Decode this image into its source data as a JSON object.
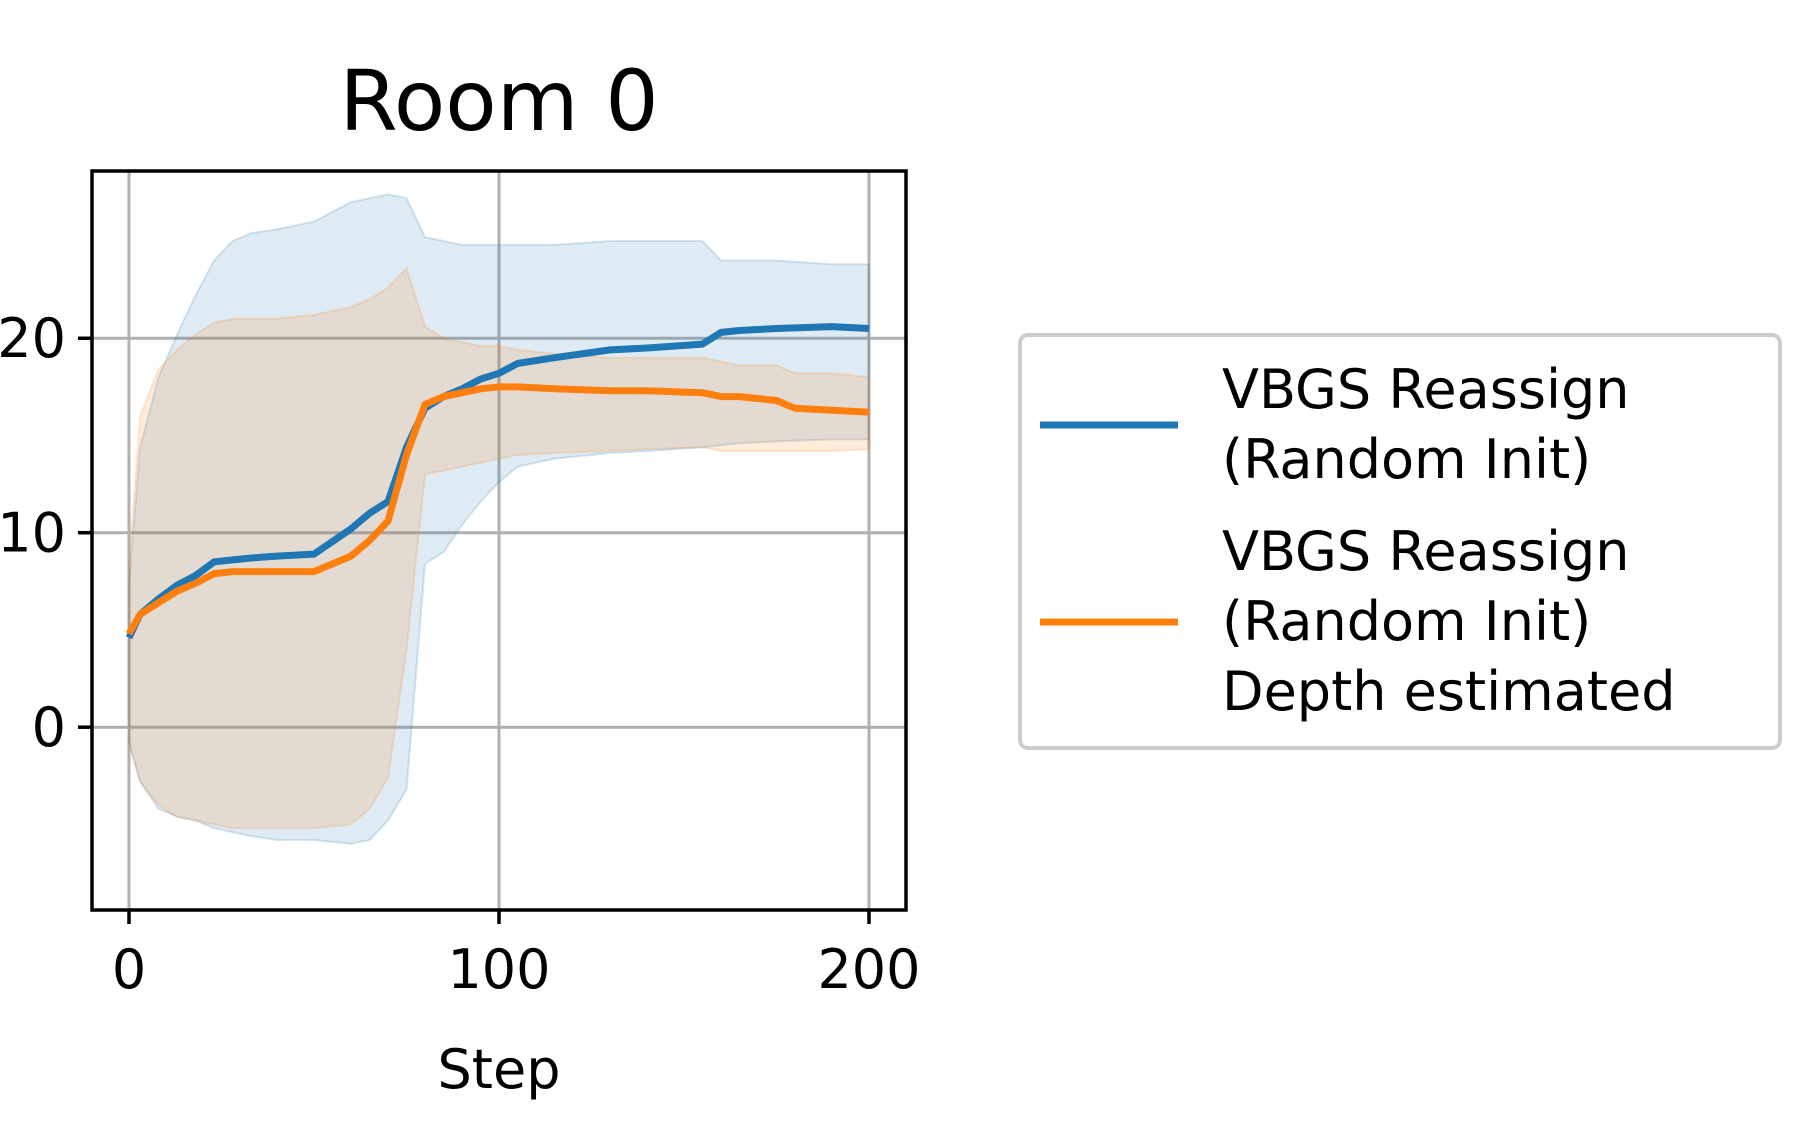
{
  "chart_data": {
    "type": "line",
    "title": "Room 0",
    "xlabel": "Step",
    "ylabel": "",
    "xlim": [
      -10,
      210
    ],
    "ylim": [
      -47,
      143
    ],
    "xticks": [
      0,
      100,
      200
    ],
    "xtick_labels": [
      "0",
      "100",
      "200"
    ],
    "yticks": [
      0,
      50,
      100
    ],
    "ytick_labels": [
      "0",
      "10",
      "20"
    ],
    "grid": true,
    "legend_position": "right, outside plot",
    "series": [
      {
        "name": "VBGS Reassign\n(Random Init)",
        "color": "#1f77b4",
        "x": [
          0,
          3,
          8,
          13,
          18,
          23,
          28,
          33,
          40,
          50,
          60,
          65,
          70,
          75,
          80,
          85,
          90,
          95,
          100,
          105,
          115,
          130,
          140,
          155,
          160,
          165,
          175,
          190,
          200
        ],
        "y": [
          23,
          29,
          33,
          36.5,
          39,
          42.5,
          43,
          43.5,
          44,
          44.5,
          51,
          55,
          58,
          72,
          82,
          85,
          87,
          89.5,
          91,
          93.5,
          95,
          97,
          97.5,
          98.5,
          101.5,
          102,
          102.5,
          103,
          102.5
        ],
        "lower": [
          -4,
          -14,
          -21,
          -23,
          -24,
          -26,
          -27,
          -28,
          -29,
          -29,
          -30,
          -29,
          -24,
          -16,
          42,
          45,
          52,
          58,
          63,
          67,
          69,
          70.5,
          71,
          72,
          72.5,
          73,
          73.5,
          74,
          74
        ],
        "upper": [
          37,
          72,
          90,
          101,
          111,
          120,
          125,
          127,
          128,
          130,
          135,
          136,
          137,
          136,
          126,
          125,
          124,
          124,
          124,
          124,
          124,
          125,
          125,
          125,
          120,
          120,
          120,
          119,
          119
        ]
      },
      {
        "name": "VBGS Reassign\n(Random Init)\nDepth estimated",
        "color": "#ff7f0e",
        "x": [
          0,
          3,
          8,
          13,
          18,
          23,
          28,
          33,
          40,
          50,
          60,
          65,
          70,
          75,
          80,
          85,
          90,
          95,
          100,
          105,
          115,
          130,
          140,
          155,
          160,
          165,
          175,
          180,
          190,
          200
        ],
        "y": [
          24,
          29,
          32,
          35,
          37,
          39.5,
          40,
          40,
          40,
          40,
          44,
          48,
          53,
          70,
          83,
          85,
          86,
          87,
          87.5,
          87.5,
          87,
          86.5,
          86.5,
          86,
          85,
          85,
          84,
          82,
          81.5,
          81
        ],
        "lower": [
          -4,
          -14,
          -20,
          -23,
          -24,
          -25,
          -26,
          -26,
          -26,
          -26,
          -25,
          -21,
          -13,
          20,
          65,
          66,
          67,
          68,
          69,
          70,
          70.5,
          71,
          71.5,
          72,
          71,
          71,
          71,
          71,
          71,
          71.5
        ],
        "upper": [
          42,
          80,
          92,
          97,
          101,
          104,
          105,
          105,
          105,
          106,
          108,
          110,
          113,
          118,
          103,
          100,
          99,
          98,
          98,
          97,
          96,
          95,
          95,
          95,
          94,
          93,
          93,
          91,
          91,
          90
        ]
      }
    ]
  }
}
